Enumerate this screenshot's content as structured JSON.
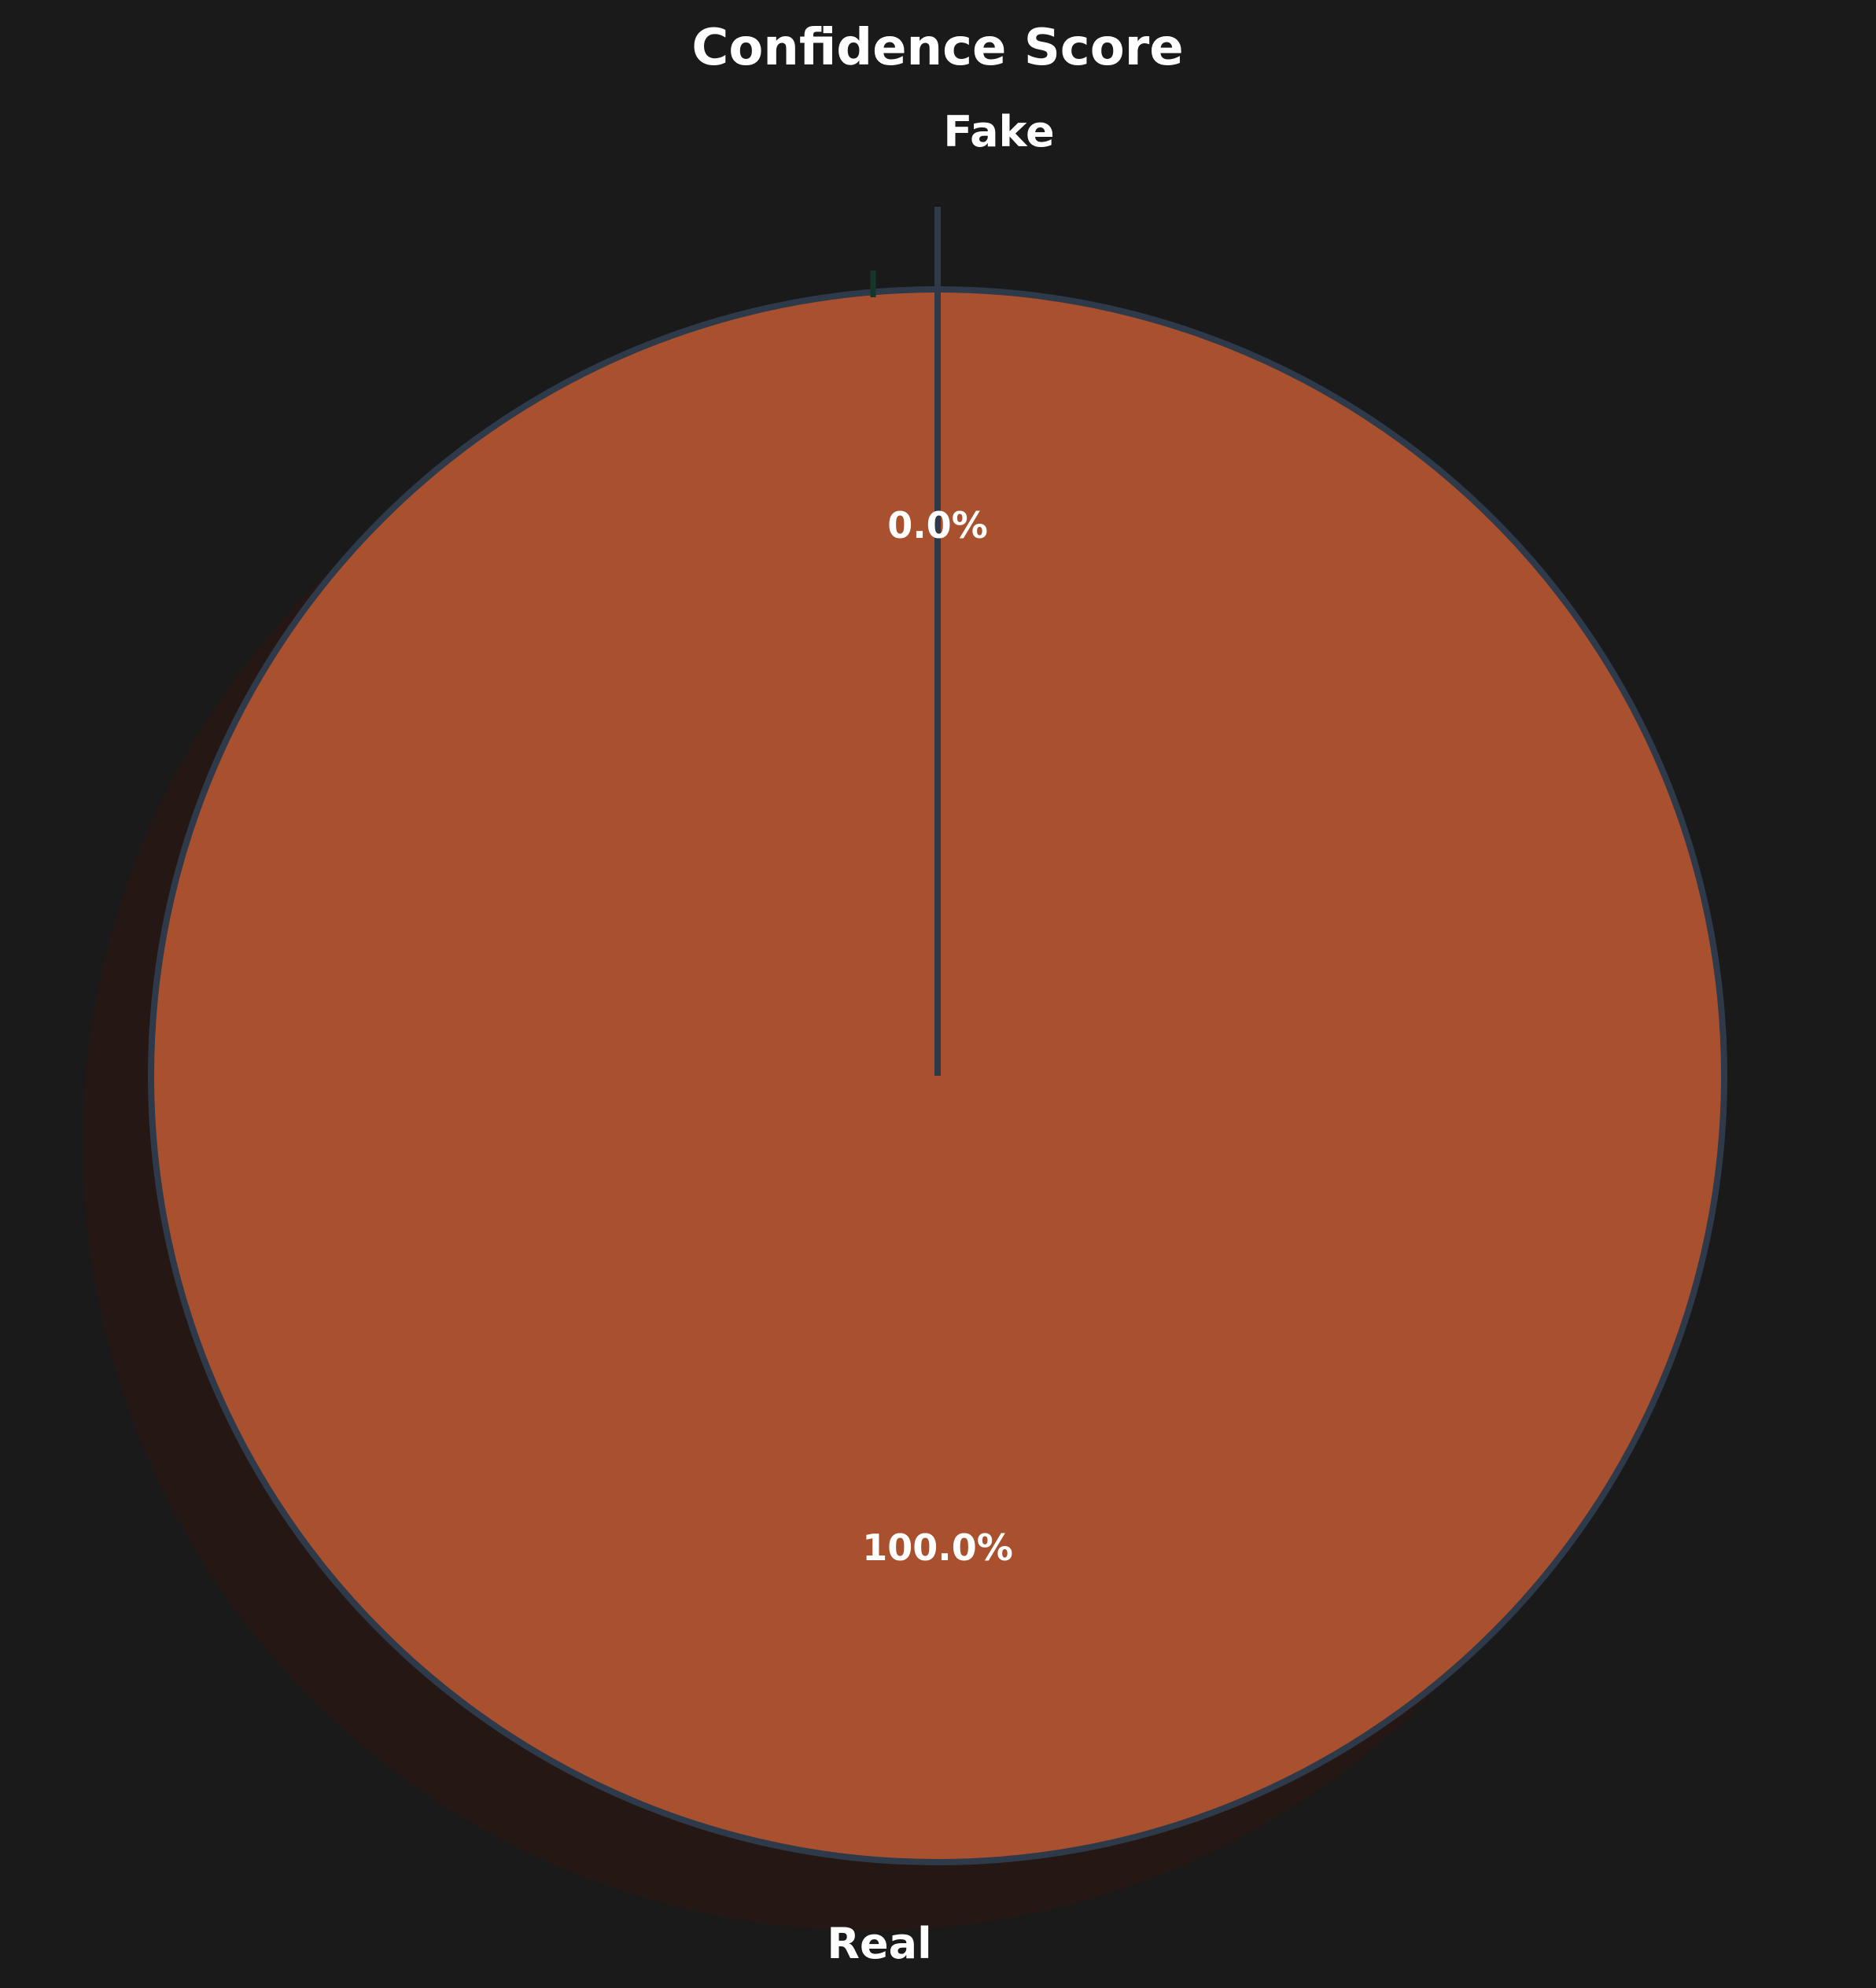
{
  "chart_data": {
    "type": "pie",
    "title": "Confidence Score",
    "slices": [
      {
        "label": "Real",
        "value": 100.0,
        "pct_label": "100.0%",
        "color": "#a9512e",
        "exploded": false
      },
      {
        "label": "Fake",
        "value": 0.0,
        "pct_label": "0.0%",
        "color": "#1f3d2e",
        "exploded": true
      }
    ],
    "edge_color": "#2e3a4a",
    "background": "#1a1a1a",
    "shadow": true
  }
}
